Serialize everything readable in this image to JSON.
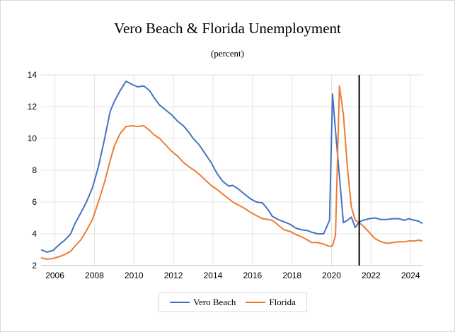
{
  "chart_data": {
    "type": "line",
    "title": "Vero Beach & Florida Unemployment",
    "subtitle": "(percent)",
    "xlabel": "",
    "ylabel": "",
    "xlim": [
      2005.3,
      2024.6
    ],
    "ylim": [
      2,
      14
    ],
    "y_ticks": [
      2,
      4,
      6,
      8,
      10,
      12,
      14
    ],
    "x_ticks": [
      2006,
      2008,
      2010,
      2012,
      2014,
      2016,
      2018,
      2020,
      2022,
      2024
    ],
    "grid": true,
    "legend": "bottom",
    "forecast_divider_x": 2021.4,
    "series": [
      {
        "name": "Vero Beach",
        "color": "#4472C4",
        "x": [
          2005.3,
          2005.6,
          2005.9,
          2006.2,
          2006.5,
          2006.8,
          2007.0,
          2007.3,
          2007.6,
          2007.9,
          2008.2,
          2008.5,
          2008.8,
          2009.0,
          2009.3,
          2009.6,
          2009.9,
          2010.2,
          2010.5,
          2010.8,
          2011.0,
          2011.3,
          2011.6,
          2011.9,
          2012.2,
          2012.5,
          2012.8,
          2013.0,
          2013.3,
          2013.6,
          2013.9,
          2014.2,
          2014.5,
          2014.8,
          2015.0,
          2015.3,
          2015.6,
          2015.9,
          2016.2,
          2016.5,
          2016.8,
          2017.0,
          2017.3,
          2017.6,
          2017.9,
          2018.2,
          2018.5,
          2018.8,
          2019.0,
          2019.3,
          2019.6,
          2019.9,
          2020.05,
          2020.2,
          2020.4,
          2020.6,
          2020.8,
          2021.0,
          2021.2,
          2021.4,
          2021.6,
          2021.9,
          2022.2,
          2022.5,
          2022.8,
          2023.1,
          2023.4,
          2023.7,
          2023.9,
          2024.2,
          2024.4,
          2024.6
        ],
        "values": [
          3.0,
          2.85,
          2.95,
          3.3,
          3.6,
          4.0,
          4.6,
          5.3,
          6.0,
          6.9,
          8.2,
          9.9,
          11.7,
          12.3,
          13.0,
          13.6,
          13.4,
          13.25,
          13.3,
          13.0,
          12.6,
          12.1,
          11.8,
          11.5,
          11.1,
          10.8,
          10.35,
          10.0,
          9.6,
          9.05,
          8.5,
          7.8,
          7.3,
          7.0,
          7.05,
          6.8,
          6.5,
          6.2,
          6.0,
          5.95,
          5.5,
          5.1,
          4.9,
          4.75,
          4.6,
          4.35,
          4.25,
          4.2,
          4.1,
          4.0,
          4.0,
          4.85,
          12.8,
          10.5,
          7.6,
          4.7,
          4.85,
          5.05,
          4.4,
          4.75,
          4.85,
          4.95,
          5.0,
          4.9,
          4.9,
          4.95,
          4.95,
          4.85,
          4.95,
          4.85,
          4.8,
          4.65
        ]
      },
      {
        "name": "Florida",
        "color": "#ED7D31",
        "x": [
          2005.3,
          2005.6,
          2005.9,
          2006.2,
          2006.5,
          2006.8,
          2007.0,
          2007.3,
          2007.6,
          2007.9,
          2008.2,
          2008.5,
          2008.8,
          2009.0,
          2009.3,
          2009.6,
          2009.9,
          2010.2,
          2010.5,
          2010.8,
          2011.0,
          2011.3,
          2011.6,
          2011.9,
          2012.2,
          2012.5,
          2012.8,
          2013.0,
          2013.3,
          2013.6,
          2013.9,
          2014.2,
          2014.5,
          2014.8,
          2015.0,
          2015.3,
          2015.6,
          2015.9,
          2016.2,
          2016.5,
          2016.8,
          2017.0,
          2017.3,
          2017.6,
          2017.9,
          2018.2,
          2018.5,
          2018.8,
          2019.0,
          2019.3,
          2019.6,
          2019.9,
          2020.05,
          2020.2,
          2020.4,
          2020.6,
          2020.8,
          2021.0,
          2021.2,
          2021.4,
          2021.6,
          2021.9,
          2022.2,
          2022.5,
          2022.8,
          2023.1,
          2023.4,
          2023.7,
          2023.9,
          2024.2,
          2024.4,
          2024.6
        ],
        "values": [
          2.5,
          2.4,
          2.45,
          2.55,
          2.7,
          2.9,
          3.2,
          3.6,
          4.2,
          4.9,
          6.0,
          7.2,
          8.6,
          9.5,
          10.3,
          10.75,
          10.8,
          10.75,
          10.8,
          10.5,
          10.25,
          10.0,
          9.6,
          9.2,
          8.9,
          8.5,
          8.2,
          8.05,
          7.75,
          7.4,
          7.05,
          6.8,
          6.5,
          6.2,
          6.0,
          5.8,
          5.6,
          5.35,
          5.15,
          4.95,
          4.9,
          4.85,
          4.55,
          4.25,
          4.15,
          3.95,
          3.8,
          3.6,
          3.45,
          3.45,
          3.35,
          3.2,
          3.25,
          3.9,
          13.3,
          11.5,
          8.2,
          5.7,
          4.85,
          4.7,
          4.5,
          4.1,
          3.7,
          3.5,
          3.4,
          3.45,
          3.5,
          3.5,
          3.55,
          3.55,
          3.6,
          3.55
        ]
      }
    ]
  }
}
